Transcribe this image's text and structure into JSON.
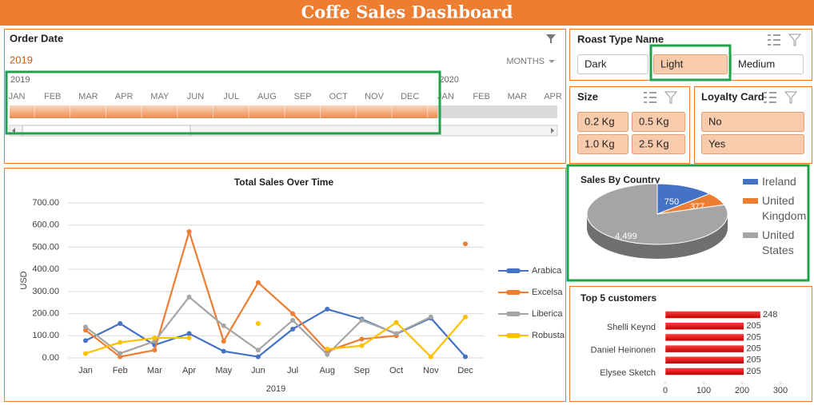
{
  "title": "Coffe Sales Dashboard",
  "timeline": {
    "title": "Order Date",
    "selected": "2019",
    "period": "MONTHS",
    "years": [
      {
        "label": "2019",
        "months": [
          "JAN",
          "FEB",
          "MAR",
          "APR",
          "MAY",
          "JUN",
          "JUL",
          "AUG",
          "SEP",
          "OCT",
          "NOV",
          "DEC"
        ]
      },
      {
        "label": "2020",
        "months": [
          "JAN",
          "FEB",
          "MAR",
          "APR"
        ]
      }
    ]
  },
  "slicers": [
    {
      "title": "Roast Type Name",
      "items": [
        "Dark",
        "Light",
        "Medium"
      ],
      "selected": [
        1
      ]
    },
    {
      "title": "Size",
      "items": [
        "0.2 Kg",
        "0.5 Kg",
        "1.0 Kg",
        "2.5 Kg"
      ],
      "selected": [
        0,
        1,
        2,
        3
      ]
    },
    {
      "title": "Loyalty Card",
      "items": [
        "No",
        "Yes"
      ],
      "selected": [
        0,
        1
      ]
    }
  ],
  "chart_data": [
    {
      "type": "line",
      "title": "Total Sales Over Time",
      "y_label": "USD",
      "x_label": "2019",
      "categories": [
        "Jan",
        "Feb",
        "Mar",
        "Apr",
        "May",
        "Jun",
        "Jul",
        "Aug",
        "Sep",
        "Oct",
        "Nov",
        "Dec"
      ],
      "series": [
        {
          "name": "Arabica",
          "color": "#4472c4",
          "values": [
            78,
            155,
            58,
            110,
            30,
            5,
            130,
            220,
            175,
            108,
            180,
            5
          ]
        },
        {
          "name": "Excelsa",
          "color": "#ed7d31",
          "values": [
            125,
            5,
            35,
            570,
            75,
            340,
            200,
            30,
            85,
            100,
            null,
            515
          ]
        },
        {
          "name": "Liberica",
          "color": "#a5a5a5",
          "values": [
            140,
            20,
            75,
            275,
            145,
            35,
            170,
            15,
            170,
            110,
            185,
            null
          ]
        },
        {
          "name": "Robusta",
          "color": "#ffc000",
          "values": [
            20,
            70,
            90,
            90,
            null,
            155,
            null,
            40,
            55,
            160,
            5,
            185
          ]
        }
      ],
      "ylim": [
        0,
        700
      ],
      "yticks": [
        {
          "value": 0,
          "label": "0.00"
        },
        {
          "value": 100,
          "label": "100.00"
        },
        {
          "value": 200,
          "label": "200.00"
        },
        {
          "value": 300,
          "label": "300.00"
        },
        {
          "value": 400,
          "label": "400.00"
        },
        {
          "value": 500,
          "label": "500.00"
        },
        {
          "value": 600,
          "label": "600.00"
        },
        {
          "value": 700,
          "label": "700.00"
        }
      ],
      "grid": true,
      "legend": "right"
    },
    {
      "type": "pie",
      "title": "Sales By Country",
      "categories": [
        "Ireland",
        "United Kingdom",
        "United States"
      ],
      "values": [
        750,
        377,
        4499
      ],
      "value_labels": [
        "750",
        "377",
        "4,499"
      ],
      "colors": [
        "#4472c4",
        "#ed7d31",
        "#a5a5a5"
      ],
      "legend": "right"
    },
    {
      "type": "hbar",
      "title": "Top 5 customers",
      "categories": [
        null,
        "Shelli Keynd",
        null,
        "Daniel Heinonen",
        null,
        "Elysee Sketch"
      ],
      "values": [
        248,
        205,
        205,
        205,
        205,
        205
      ],
      "color": "#e00000",
      "xlim": [
        0,
        300
      ],
      "xticks": [
        0,
        100,
        200,
        300
      ]
    }
  ]
}
